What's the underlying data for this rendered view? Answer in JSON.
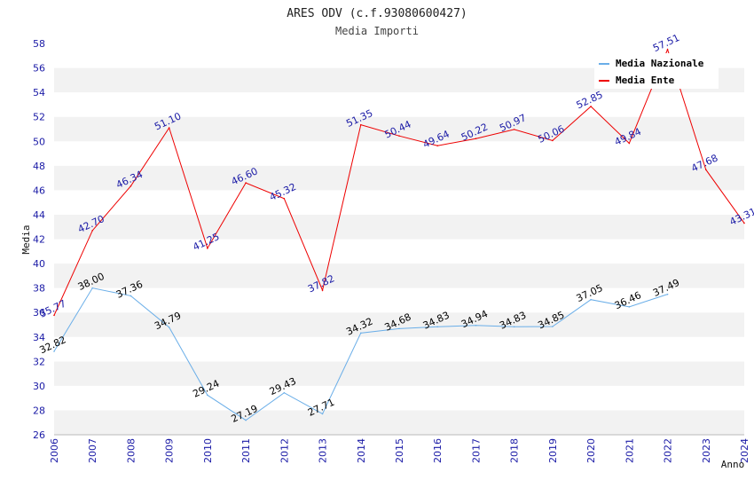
{
  "chart_data": {
    "type": "line",
    "title": "ARES ODV (c.f.93080600427)",
    "subtitle": "Media Importi",
    "xlabel": "Anno",
    "ylabel": "Media",
    "ylim": [
      26,
      58
    ],
    "yticks": [
      "26",
      "28",
      "30",
      "32",
      "34",
      "36",
      "38",
      "40",
      "42",
      "44",
      "46",
      "48",
      "50",
      "52",
      "54",
      "56",
      "58"
    ],
    "x": [
      "2006",
      "2007",
      "2008",
      "2009",
      "2010",
      "2011",
      "2012",
      "2013",
      "2014",
      "2015",
      "2016",
      "2017",
      "2018",
      "2019",
      "2020",
      "2021",
      "2022",
      "2023",
      "2024"
    ],
    "grid": true,
    "legend_position": "top-right",
    "series": [
      {
        "name": "Media Nazionale",
        "color": "#6aaee8",
        "label_color": "#000000",
        "values": [
          32.82,
          38.0,
          37.36,
          34.79,
          29.24,
          27.19,
          29.43,
          27.71,
          34.32,
          34.68,
          34.83,
          34.94,
          34.83,
          34.85,
          37.05,
          36.46,
          37.49,
          null,
          null
        ],
        "labels": [
          "32.82",
          "38.00",
          "37.36",
          "34.79",
          "29.24",
          "27.19",
          "29.43",
          "27.71",
          "34.32",
          "34.68",
          "34.83",
          "34.94",
          "34.83",
          "34.85",
          "37.05",
          "36.46",
          "37.49",
          null,
          null
        ]
      },
      {
        "name": "Media Ente",
        "color": "#ee0000",
        "label_color": "#1a1aa6",
        "values": [
          35.77,
          42.7,
          46.34,
          51.1,
          41.25,
          46.6,
          45.32,
          37.82,
          51.35,
          50.44,
          49.64,
          50.22,
          50.97,
          50.06,
          52.85,
          49.84,
          57.51,
          47.68,
          43.31
        ],
        "labels": [
          "35.77",
          "42.70",
          "46.34",
          "51.10",
          "41.25",
          "46.60",
          "45.32",
          "37.82",
          "51.35",
          "50.44",
          "49.64",
          "50.22",
          "50.97",
          "50.06",
          "52.85",
          "49.84",
          "57.51",
          "47.68",
          "43.31"
        ]
      }
    ]
  }
}
